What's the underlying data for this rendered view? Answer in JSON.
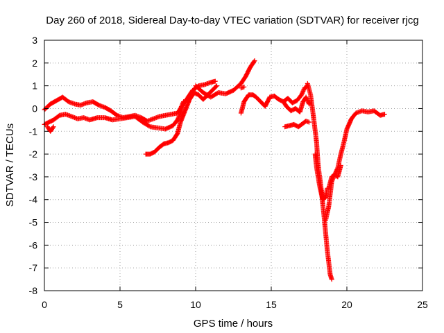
{
  "chart_data": {
    "type": "scatter",
    "title": "Day 260 of 2018, Sidereal Day-to-day VTEC variation (SDTVAR) for receiver rjcg",
    "xlabel": "GPS time / hours",
    "ylabel": "SDTVAR / TECUs",
    "xlim": [
      0,
      25
    ],
    "ylim": [
      -8,
      3
    ],
    "xticks": [
      0,
      5,
      10,
      15,
      20,
      25
    ],
    "yticks": [
      -8,
      -7,
      -6,
      -5,
      -4,
      -3,
      -2,
      -1,
      0,
      1,
      2,
      3
    ],
    "grid": true,
    "marker": "plus",
    "color": "#ff0000",
    "series": [
      {
        "x": [
          0.0,
          0.4,
          0.8,
          1.2,
          1.6,
          2.0,
          2.4,
          2.8,
          3.2,
          3.6,
          4.0,
          4.4,
          4.8,
          5.2,
          5.6,
          6.0,
          6.4,
          6.8,
          7.2,
          7.6,
          8.0,
          8.4,
          8.8,
          9.0,
          9.2
        ],
        "y": [
          -0.05,
          0.2,
          0.35,
          0.5,
          0.3,
          0.2,
          0.15,
          0.25,
          0.3,
          0.15,
          0.05,
          -0.1,
          -0.3,
          -0.4,
          -0.35,
          -0.3,
          -0.4,
          -0.55,
          -0.45,
          -0.35,
          -0.3,
          -0.25,
          -0.2,
          0.0,
          0.3
        ]
      },
      {
        "x": [
          0.0,
          0.3,
          0.6,
          1.0,
          1.4,
          1.8,
          2.2,
          2.6,
          3.0,
          3.5,
          4.0,
          4.5,
          5.0,
          5.5,
          6.0,
          6.5,
          7.0,
          7.5,
          8.0,
          8.5,
          8.8,
          9.0,
          9.2,
          9.5,
          9.8,
          10.2,
          10.6,
          11.0,
          11.3
        ],
        "y": [
          -0.7,
          -0.6,
          -0.5,
          -0.3,
          -0.25,
          -0.35,
          -0.45,
          -0.4,
          -0.5,
          -0.4,
          -0.4,
          -0.5,
          -0.45,
          -0.4,
          -0.35,
          -0.6,
          -0.8,
          -0.85,
          -0.9,
          -0.75,
          -0.5,
          -0.2,
          0.2,
          0.5,
          0.8,
          1.0,
          1.05,
          1.15,
          1.2
        ]
      },
      {
        "x": [
          0.2,
          0.4,
          0.6
        ],
        "y": [
          -0.8,
          -1.0,
          -0.8
        ]
      },
      {
        "x": [
          6.7,
          7.0,
          7.3,
          7.6,
          7.9,
          8.2,
          8.5,
          8.8,
          9.0,
          9.3,
          9.6,
          9.9,
          10.2,
          10.5,
          10.8,
          11.1,
          11.4
        ],
        "y": [
          -2.0,
          -2.0,
          -1.9,
          -1.7,
          -1.55,
          -1.5,
          -1.4,
          -1.1,
          -0.6,
          -0.1,
          0.4,
          0.7,
          0.6,
          0.4,
          0.6,
          0.8,
          1.0
        ]
      },
      {
        "x": [
          10.0,
          10.5,
          11.0,
          11.5,
          12.0,
          12.5,
          13.0,
          13.3,
          13.6,
          13.9
        ],
        "y": [
          1.0,
          0.7,
          0.5,
          0.7,
          0.65,
          0.8,
          1.1,
          1.4,
          1.8,
          2.1
        ]
      },
      {
        "x": [
          13.0,
          13.2
        ],
        "y": [
          0.9,
          0.95
        ]
      },
      {
        "x": [
          13.0,
          13.2,
          13.5,
          13.8,
          14.0,
          14.3,
          14.6,
          14.9,
          15.2,
          15.5,
          15.8,
          16.1,
          16.4,
          16.7,
          17.0,
          17.2,
          17.4
        ],
        "y": [
          -0.2,
          0.3,
          0.6,
          0.6,
          0.5,
          0.3,
          0.1,
          0.5,
          0.55,
          0.4,
          0.3,
          0.45,
          0.25,
          0.35,
          0.6,
          0.9,
          1.0
        ]
      },
      {
        "x": [
          15.8,
          16.0,
          16.3,
          16.6,
          16.9,
          17.1,
          17.3,
          17.5
        ],
        "y": [
          0.3,
          0.1,
          -0.1,
          0.0,
          -0.15,
          0.3,
          0.5,
          0.2
        ]
      },
      {
        "x": [
          15.9,
          16.2,
          16.5,
          16.8,
          17.1,
          17.3,
          17.5
        ],
        "y": [
          -0.8,
          -0.75,
          -0.7,
          -0.8,
          -0.65,
          -0.55,
          -0.6
        ]
      },
      {
        "x": [
          17.4,
          17.6,
          17.8,
          18.0,
          18.1,
          18.3,
          18.5,
          18.7,
          18.9,
          19.0
        ],
        "y": [
          1.1,
          0.6,
          -0.4,
          -1.5,
          -2.5,
          -3.5,
          -4.8,
          -6.2,
          -7.3,
          -7.5
        ]
      },
      {
        "x": [
          17.9,
          18.0,
          18.2,
          18.4,
          18.6,
          18.7
        ],
        "y": [
          -2.0,
          -2.6,
          -3.4,
          -4.0,
          -3.9,
          -3.5
        ]
      },
      {
        "x": [
          18.6,
          18.8,
          19.0,
          19.2,
          19.4,
          19.6,
          19.8,
          20.0,
          20.3,
          20.6,
          21.0,
          21.4,
          21.8,
          22.2,
          22.5
        ],
        "y": [
          -4.9,
          -4.3,
          -3.2,
          -2.9,
          -2.6,
          -2.0,
          -1.5,
          -0.9,
          -0.45,
          -0.2,
          -0.1,
          -0.15,
          -0.1,
          -0.3,
          -0.25
        ]
      },
      {
        "x": [
          18.8,
          19.0,
          19.2,
          19.4,
          19.6
        ],
        "y": [
          -3.5,
          -3.0,
          -2.9,
          -3.0,
          -2.5
        ]
      }
    ]
  }
}
